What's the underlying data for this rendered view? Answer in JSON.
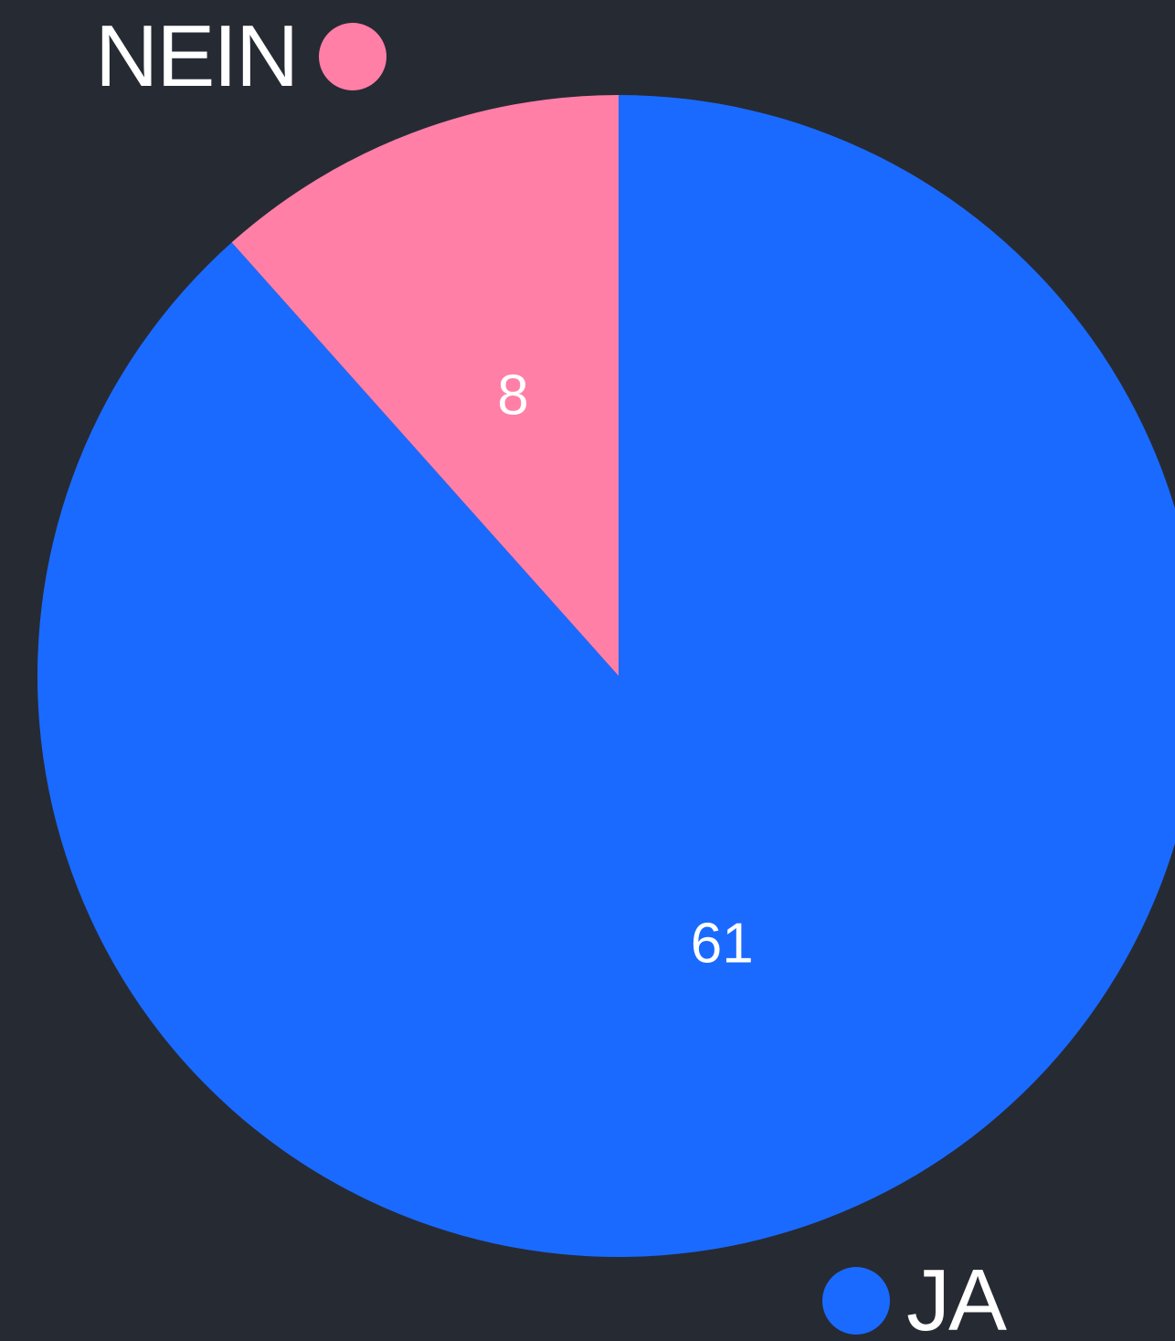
{
  "chart_data": {
    "type": "pie",
    "categories": [
      "NEIN",
      "JA"
    ],
    "values": [
      8,
      61
    ],
    "colors": [
      "#ff7fa7",
      "#1a6aff"
    ],
    "data_labels": [
      "8",
      "61"
    ],
    "legend": {
      "entries": [
        "NEIN",
        "JA"
      ]
    }
  }
}
